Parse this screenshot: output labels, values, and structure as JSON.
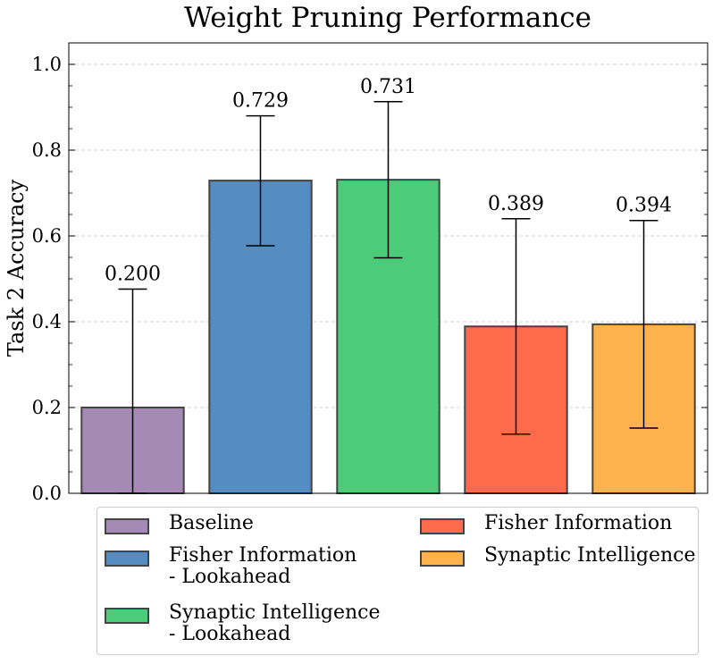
{
  "chart_data": {
    "type": "bar",
    "title": "Weight Pruning Performance",
    "xlabel": "",
    "ylabel": "Task 2 Accuracy",
    "ylim": [
      0,
      1.05
    ],
    "yticks": [
      0.0,
      0.2,
      0.4,
      0.6,
      0.8,
      1.0
    ],
    "ytick_labels": [
      "0.0",
      "0.2",
      "0.4",
      "0.6",
      "0.8",
      "1.0"
    ],
    "grid": true,
    "legend_position": "bottom",
    "categories": [
      "Baseline",
      "Fisher Information - Lookahead",
      "Synaptic Intelligence - Lookahead",
      "Fisher Information",
      "Synaptic Intelligence"
    ],
    "values": [
      0.2,
      0.729,
      0.731,
      0.389,
      0.394
    ],
    "value_labels": [
      "0.200",
      "0.729",
      "0.731",
      "0.389",
      "0.394"
    ],
    "error_low": [
      0.0,
      0.577,
      0.549,
      0.138,
      0.152
    ],
    "error_high": [
      0.476,
      0.88,
      0.913,
      0.64,
      0.636
    ],
    "colors": [
      "#a58ab5",
      "#548dc1",
      "#4ccc78",
      "#fe6a4c",
      "#feb24c"
    ],
    "edge_color": "#444444"
  },
  "legend": {
    "items": [
      {
        "lines": [
          "Baseline"
        ],
        "color": "#a58ab5"
      },
      {
        "lines": [
          "Fisher Information",
          "- Lookahead"
        ],
        "color": "#548dc1"
      },
      {
        "lines": [
          "Synaptic Intelligence",
          "- Lookahead"
        ],
        "color": "#4ccc78"
      },
      {
        "lines": [
          "Fisher Information"
        ],
        "color": "#fe6a4c"
      },
      {
        "lines": [
          "Synaptic Intelligence"
        ],
        "color": "#feb24c"
      }
    ]
  }
}
